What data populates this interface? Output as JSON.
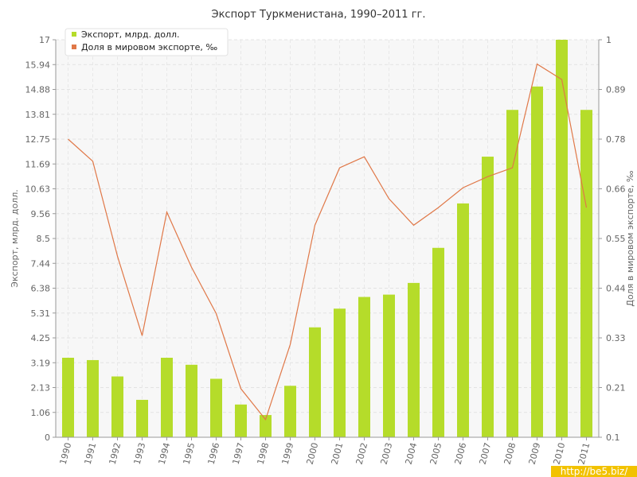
{
  "chart_data": {
    "type": "bar",
    "title": "Экспорт Туркменистана, 1990–2011 гг.",
    "categories": [
      "1990",
      "1991",
      "1992",
      "1993",
      "1994",
      "1995",
      "1996",
      "1997",
      "1998",
      "1999",
      "2000",
      "2001",
      "2002",
      "2003",
      "2004",
      "2005",
      "2006",
      "2007",
      "2008",
      "2009",
      "2010",
      "2011"
    ],
    "ylabel": "Экспорт, млрд. долл.",
    "y2label": "Доля в мировом экспорте, ‰",
    "ylim": [
      0,
      17
    ],
    "y2lim": [
      0.1,
      1
    ],
    "yticks": [
      "0",
      "1.06",
      "2.13",
      "3.19",
      "4.25",
      "5.31",
      "6.38",
      "7.44",
      "8.5",
      "9.56",
      "10.63",
      "11.69",
      "12.75",
      "13.81",
      "14.88",
      "15.94",
      "17"
    ],
    "y2ticks": [
      "0.1",
      "0.21",
      "0.33",
      "0.44",
      "0.55",
      "0.66",
      "0.78",
      "0.89",
      "1"
    ],
    "grid": true,
    "legend_position": "top-left",
    "series": [
      {
        "name": "Экспорт, млрд. долл.",
        "type": "bar",
        "axis": "left",
        "color": "#b5dc2a",
        "values": [
          3.4,
          3.3,
          2.6,
          1.6,
          3.4,
          3.1,
          2.5,
          1.4,
          0.95,
          2.2,
          4.7,
          5.5,
          6.0,
          6.1,
          6.6,
          8.1,
          10.0,
          12.0,
          14.0,
          15.0,
          17.0,
          14.0
        ]
      },
      {
        "name": "Доля в мировом экспорте, ‰",
        "type": "line",
        "axis": "right",
        "color": "#e07848",
        "values": [
          0.775,
          0.725,
          0.51,
          0.33,
          0.61,
          0.485,
          0.38,
          0.21,
          0.14,
          0.31,
          0.58,
          0.71,
          0.735,
          0.64,
          0.58,
          0.62,
          0.665,
          0.69,
          0.71,
          0.945,
          0.91,
          0.62
        ]
      }
    ]
  },
  "watermark": "http://be5.biz/"
}
